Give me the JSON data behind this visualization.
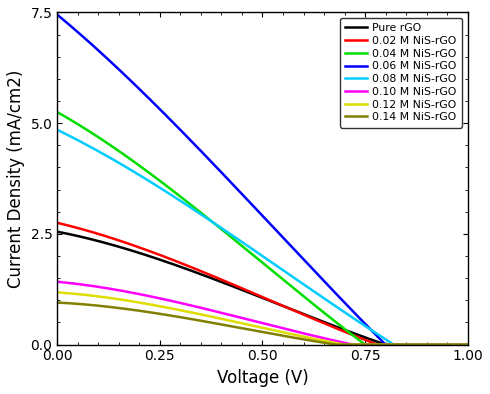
{
  "title": "",
  "xlabel": "Voltage (V)",
  "ylabel": "Current Density (mA/cm2)",
  "xlim": [
    0.0,
    1.0
  ],
  "ylim": [
    0.0,
    7.5
  ],
  "xticks": [
    0.0,
    0.25,
    0.5,
    0.75,
    1.0
  ],
  "yticks": [
    0.0,
    2.5,
    5.0,
    7.5
  ],
  "curves": [
    {
      "label": "Pure rGO",
      "color": "#000000",
      "jsc": 2.55,
      "voc": 0.8,
      "rs": 0.55
    },
    {
      "label": "0.02 M NiS-rGO",
      "color": "#ff0000",
      "jsc": 2.75,
      "voc": 0.78,
      "rs": 0.48
    },
    {
      "label": "0.04 M NiS-rGO",
      "color": "#00dd00",
      "jsc": 5.25,
      "voc": 0.75,
      "rs": 0.32
    },
    {
      "label": "0.06 M NiS-rGO",
      "color": "#0000ff",
      "jsc": 7.45,
      "voc": 0.8,
      "rs": 0.22
    },
    {
      "label": "0.08 M NiS-rGO",
      "color": "#00ccff",
      "jsc": 4.85,
      "voc": 0.82,
      "rs": 0.3
    },
    {
      "label": "0.10 M NiS-rGO",
      "color": "#ff00ff",
      "jsc": 1.42,
      "voc": 0.72,
      "rs": 0.7
    },
    {
      "label": "0.12 M NiS-rGO",
      "color": "#dddd00",
      "jsc": 1.18,
      "voc": 0.7,
      "rs": 0.78
    },
    {
      "label": "0.14 M NiS-rGO",
      "color": "#808000",
      "jsc": 0.95,
      "voc": 0.68,
      "rs": 0.85
    }
  ],
  "figsize": [
    4.9,
    3.94
  ],
  "dpi": 100
}
